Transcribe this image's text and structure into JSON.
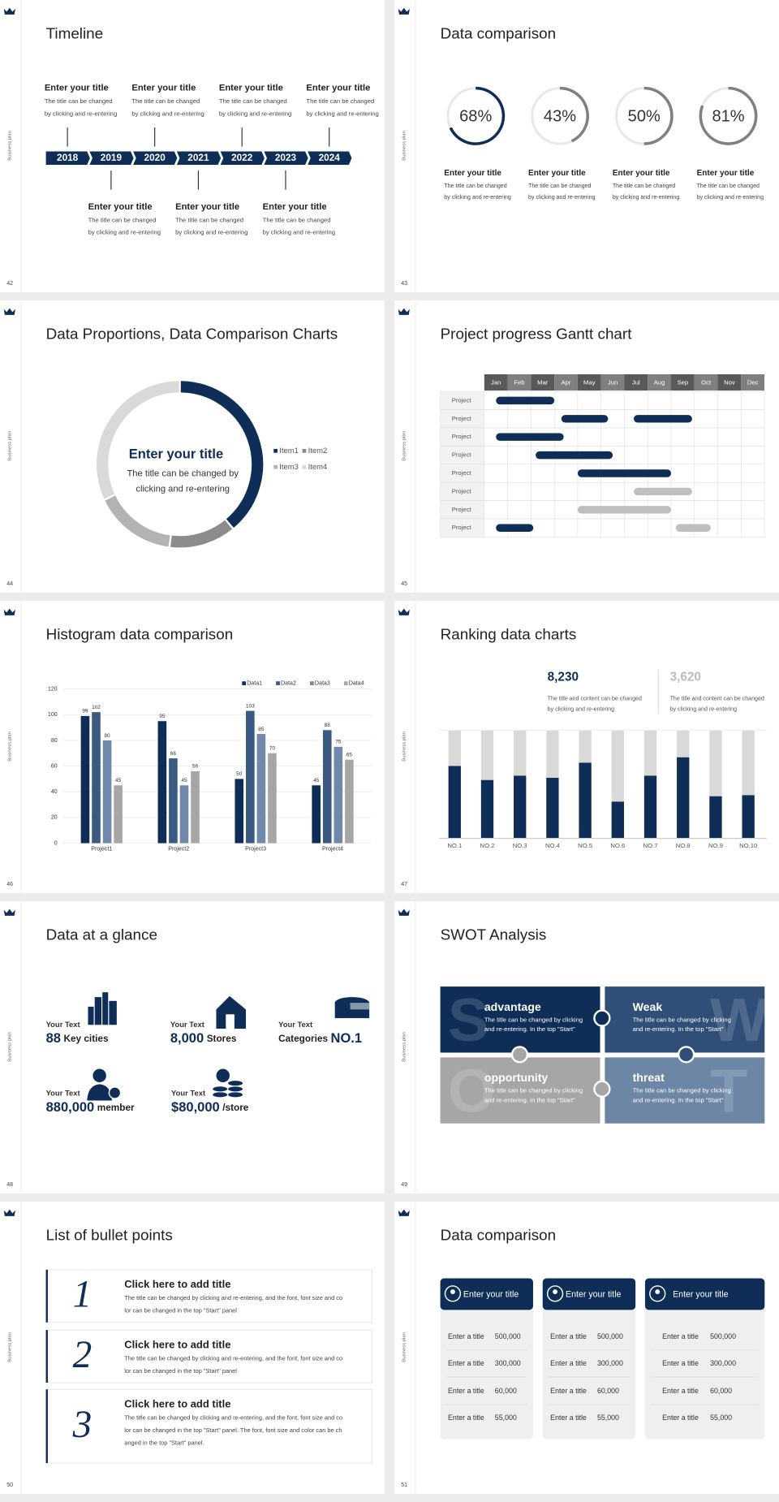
{
  "slides": [
    {
      "page": "42",
      "side": "Business plan",
      "title": "Timeline",
      "years": [
        "2018",
        "2019",
        "2020",
        "2021",
        "2022",
        "2023",
        "2024"
      ],
      "milestones": [
        {
          "title": "Enter your title",
          "lines": [
            "The title can be changed",
            "by clicking and re-entering"
          ]
        },
        {
          "title": "Enter your title",
          "lines": [
            "The title can be changed",
            "by clicking and re-entering"
          ]
        },
        {
          "title": "Enter your title",
          "lines": [
            "The title can be changed",
            "by clicking and re-entering"
          ]
        },
        {
          "title": "Enter your title",
          "lines": [
            "The title can be changed",
            "by clicking and re-entering"
          ]
        },
        {
          "title": "Enter your title",
          "lines": [
            "The title can be changed",
            "by clicking and re-entering"
          ]
        },
        {
          "title": "Enter your title",
          "lines": [
            "The title can be changed",
            "by clicking and re-entering"
          ]
        },
        {
          "title": "Enter your title",
          "lines": [
            "The title can be changed",
            "by clicking and re-entering"
          ]
        }
      ]
    },
    {
      "page": "43",
      "side": "Business plan",
      "title": "Data comparison",
      "values": [
        68,
        43,
        50,
        81
      ],
      "value_labels": [
        "68%",
        "43%",
        "50%",
        "81%"
      ],
      "colors": [
        "#0e2d57",
        "#808080",
        "#808080",
        "#808080"
      ],
      "captions": [
        {
          "title": "Enter your title",
          "lines": [
            "The title can be changed",
            "by clicking and re-entering"
          ]
        },
        {
          "title": "Enter your title",
          "lines": [
            "The title can be changed",
            "by clicking and re-entering"
          ]
        },
        {
          "title": "Enter your title",
          "lines": [
            "The title can be changed",
            "by clicking and re-entering"
          ]
        },
        {
          "title": "Enter your title",
          "lines": [
            "The title can be changed",
            "by clicking and re-entering"
          ]
        }
      ]
    },
    {
      "page": "44",
      "side": "Business plan",
      "title": "Data Proportions, Data Comparison Charts",
      "chart": {
        "type": "donut",
        "categories": [
          "Item1",
          "Item2",
          "Item3",
          "Item4"
        ],
        "values": [
          39,
          13,
          16,
          32
        ],
        "colors": [
          "#0e2d57",
          "#8c8c8c",
          "#b3b3b3",
          "#d9d9d9"
        ]
      },
      "heading": "Enter your title",
      "lines": [
        "The title can be changed by",
        "clicking and re-entering"
      ]
    },
    {
      "page": "45",
      "side": "Business plan",
      "title": "Project progress Gantt chart",
      "months": [
        "Jan",
        "Feb",
        "Mar",
        "Apr",
        "May",
        "Jun",
        "Jul",
        "Aug",
        "Sep",
        "Oct",
        "Nov",
        "Dec"
      ],
      "rows": [
        {
          "label": "Project",
          "bars": [
            {
              "start": 0.5,
              "end": 3,
              "color": "#0e2d57"
            }
          ]
        },
        {
          "label": "Project",
          "bars": [
            {
              "start": 3.3,
              "end": 5.3,
              "color": "#0e2d57"
            },
            {
              "start": 6.4,
              "end": 8.9,
              "color": "#0e2d57"
            }
          ]
        },
        {
          "label": "Project",
          "bars": [
            {
              "start": 0.5,
              "end": 3.4,
              "color": "#0e2d57"
            }
          ]
        },
        {
          "label": "Project",
          "bars": [
            {
              "start": 2.2,
              "end": 5.5,
              "color": "#0e2d57"
            }
          ]
        },
        {
          "label": "Project",
          "bars": [
            {
              "start": 4,
              "end": 8,
              "color": "#0e2d57"
            }
          ]
        },
        {
          "label": "Project",
          "bars": [
            {
              "start": 6.4,
              "end": 8.9,
              "color": "#bfbfbf"
            }
          ]
        },
        {
          "label": "Project",
          "bars": [
            {
              "start": 4,
              "end": 8,
              "color": "#bfbfbf"
            }
          ]
        },
        {
          "label": "Project",
          "bars": [
            {
              "start": 0.5,
              "end": 2.1,
              "color": "#0e2d57"
            },
            {
              "start": 8.2,
              "end": 9.7,
              "color": "#bfbfbf"
            }
          ]
        }
      ]
    },
    {
      "page": "46",
      "side": "Business plan",
      "title": "Histogram data comparison",
      "chart": {
        "type": "bar",
        "categories": [
          "Project1",
          "Project2",
          "Project3",
          "Project4"
        ],
        "series": [
          {
            "name": "Data1",
            "color": "#0e2d57",
            "values": [
              99,
              95,
              50,
              45
            ]
          },
          {
            "name": "Data2",
            "color": "#3b5a82",
            "values": [
              102,
              66,
              103,
              88
            ]
          },
          {
            "name": "Data3",
            "color": "#7089aa",
            "values": [
              80,
              45,
              85,
              75
            ]
          },
          {
            "name": "Data4",
            "color": "#a6a6a6",
            "values": [
              45,
              56,
              70,
              65
            ]
          }
        ],
        "ylim": [
          0,
          120
        ],
        "yticks": [
          0,
          20,
          40,
          60,
          80,
          100,
          120
        ],
        "grid": true
      }
    },
    {
      "page": "47",
      "side": "Business plan",
      "title": "Ranking data charts",
      "stats": [
        {
          "value": "8,230",
          "lines": [
            "The title and content can be changed",
            "by clicking and re-entering"
          ]
        },
        {
          "value": "3,620",
          "lines": [
            "The title and content can be changed",
            "by clicking and re-entering"
          ]
        }
      ],
      "chart": {
        "type": "stacked-bar",
        "categories": [
          "NO.1",
          "NO.2",
          "NO.3",
          "NO.4",
          "NO.5",
          "NO.6",
          "NO.7",
          "NO.8",
          "NO.9",
          "NO.10"
        ],
        "series": [
          {
            "color": "#0e2d57",
            "values": [
              67,
              54,
              58,
              56,
              70,
              34,
              58,
              75,
              39,
              40
            ]
          },
          {
            "color": "#d9d9d9",
            "values": [
              33,
              46,
              42,
              44,
              30,
              66,
              42,
              25,
              61,
              60
            ]
          }
        ],
        "ylim": [
          0,
          100
        ]
      }
    },
    {
      "page": "48",
      "side": "Business plan",
      "title": "Data at a glance",
      "items": [
        {
          "label": "Your Text",
          "big": "88",
          "small": "Key cities"
        },
        {
          "label": "Your Text",
          "big": "8,000",
          "small": "Stores"
        },
        {
          "label": "Your Text",
          "big": "NO.1",
          "small": "Categories"
        },
        {
          "label": "Your Text",
          "big": "880,000",
          "small": "member"
        },
        {
          "label": "Your Text",
          "big": "$80,000",
          "small": "/store"
        }
      ]
    },
    {
      "page": "49",
      "side": "Business plan",
      "title": "SWOT Analysis",
      "tiles": [
        {
          "letter": "S",
          "title": "advantage",
          "color": "#0e2d57",
          "lines": [
            "The title can be changed by clicking",
            "and re-entering. In the top \"Start\""
          ]
        },
        {
          "letter": "W",
          "title": "Weak",
          "color": "#2f4f78",
          "lines": [
            "The title can be changed by clicking",
            "and re-entering. In the top \"Start\""
          ]
        },
        {
          "letter": "O",
          "title": "opportunity",
          "color": "#a6a6a6",
          "lines": [
            "The title can be changed by clicking",
            "and re-entering. In the top \"Start\""
          ]
        },
        {
          "letter": "T",
          "title": "threat",
          "color": "#6d86a6",
          "lines": [
            "The title can be changed by clicking",
            "and re-entering. In the top \"Start\""
          ]
        }
      ]
    },
    {
      "page": "50",
      "side": "Business plan",
      "title": "List of bullet points",
      "bullets": [
        {
          "number": "1",
          "title": "Click here to add title",
          "lines": [
            "The title can be changed by clicking and re-entering, and the font, font size and co",
            "lor can be changed in the top \"Start\" panel"
          ]
        },
        {
          "number": "2",
          "title": "Click here to add title",
          "lines": [
            "The title can be changed by clicking and re-entering, and the font, font size and co",
            "lor can be changed in the top \"Start\" panel"
          ]
        },
        {
          "number": "3",
          "title": "Click here to add title",
          "lines": [
            "The title can be changed by clicking and re-entering, and the font, font size and co",
            "lor can be changed in the top \"Start\" panel. The font, font size and color can be ch",
            "anged in the top \"Start\" panel."
          ]
        }
      ]
    },
    {
      "page": "51",
      "side": "Business plan",
      "title": "Data comparison",
      "cards": [
        {
          "title": "Enter your title",
          "rows": [
            {
              "label": "Enter a title",
              "value": "500,000"
            },
            {
              "label": "Enter a title",
              "value": "300,000"
            },
            {
              "label": "Enter a title",
              "value": "60,000"
            },
            {
              "label": "Enter a title",
              "value": "55,000"
            }
          ]
        },
        {
          "title": "Enter your title",
          "rows": [
            {
              "label": "Enter a title",
              "value": "500,000"
            },
            {
              "label": "Enter a title",
              "value": "300,000"
            },
            {
              "label": "Enter a title",
              "value": "60,000"
            },
            {
              "label": "Enter a title",
              "value": "55,000"
            }
          ]
        },
        {
          "title": "Enter your title",
          "rows": [
            {
              "label": "Enter a title",
              "value": "500,000"
            },
            {
              "label": "Enter a title",
              "value": "300,000"
            },
            {
              "label": "Enter a title",
              "value": "60,000"
            },
            {
              "label": "Enter a title",
              "value": "55,000"
            }
          ]
        }
      ]
    }
  ]
}
